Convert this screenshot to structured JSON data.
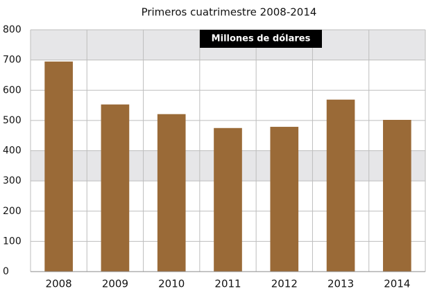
{
  "chart_data": {
    "type": "bar",
    "title": "Primeros cuatrimestre 2008-2014",
    "annotation": "Millones de dólares",
    "categories": [
      "2008",
      "2009",
      "2010",
      "2011",
      "2012",
      "2013",
      "2014"
    ],
    "values": [
      695,
      553,
      521,
      475,
      479,
      569,
      502
    ],
    "color": "#9a6a37",
    "ylim": [
      0,
      800
    ],
    "yticks": [
      0,
      100,
      200,
      300,
      400,
      500,
      600,
      700,
      800
    ],
    "grid": true
  }
}
